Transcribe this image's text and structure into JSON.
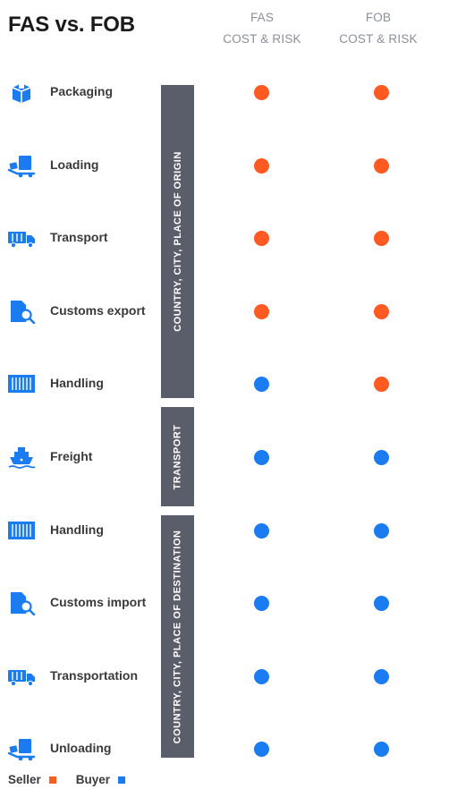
{
  "title": "FAS vs. FOB",
  "columns": {
    "fas": {
      "line1": "FAS",
      "line2": "COST & RISK"
    },
    "fob": {
      "line1": "FOB",
      "line2": "COST & RISK"
    }
  },
  "colors": {
    "seller": "#ff5a22",
    "buyer": "#1a7cf0",
    "icon": "#1a7cf0",
    "band": "#5a5e6a"
  },
  "rows": [
    {
      "label": "Packaging",
      "icon": "package-icon",
      "fas": "seller",
      "fob": "seller"
    },
    {
      "label": "Loading",
      "icon": "loading-icon",
      "fas": "seller",
      "fob": "seller"
    },
    {
      "label": "Transport",
      "icon": "truck-icon",
      "fas": "seller",
      "fob": "seller"
    },
    {
      "label": "Customs export",
      "icon": "customs-icon",
      "fas": "seller",
      "fob": "seller"
    },
    {
      "label": "Handling",
      "icon": "container-icon",
      "fas": "buyer",
      "fob": "seller"
    },
    {
      "label": "Freight",
      "icon": "ship-icon",
      "fas": "buyer",
      "fob": "buyer"
    },
    {
      "label": "Handling",
      "icon": "container-icon",
      "fas": "buyer",
      "fob": "buyer"
    },
    {
      "label": "Customs import",
      "icon": "customs-icon",
      "fas": "buyer",
      "fob": "buyer"
    },
    {
      "label": "Transportation",
      "icon": "truck-icon",
      "fas": "buyer",
      "fob": "buyer"
    },
    {
      "label": "Unloading",
      "icon": "loading-icon",
      "fas": "buyer",
      "fob": "buyer"
    }
  ],
  "bands": [
    {
      "label": "COUNTRY, CITY, PLACE OF ORIGIN"
    },
    {
      "label": "TRANSPORT"
    },
    {
      "label": "COUNTRY, CITY, PLACE OF DESTINATION"
    }
  ],
  "legend": {
    "seller": "Seller",
    "buyer": "Buyer"
  }
}
